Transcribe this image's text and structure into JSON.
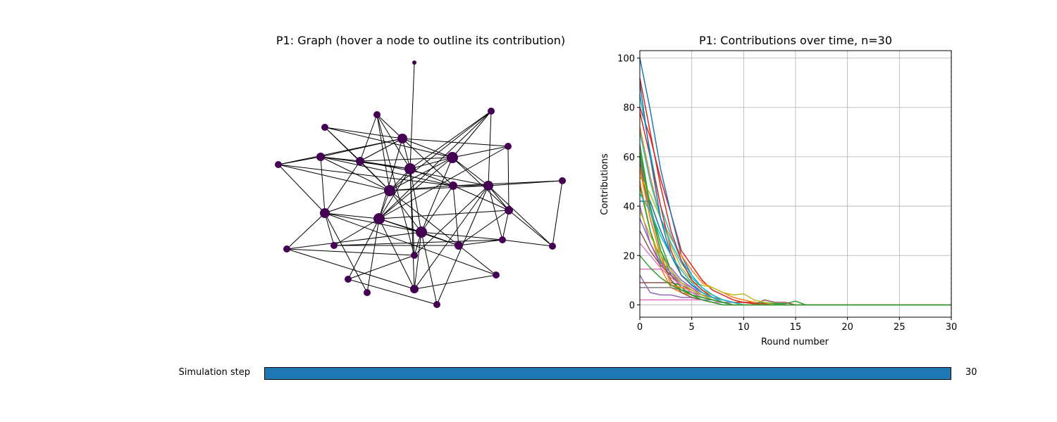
{
  "graph_panel": {
    "title": "P1: Graph (hover a node to outline its contribution)",
    "node_color": "#440154",
    "edge_color": "#000000"
  },
  "slider": {
    "label": "Simulation step",
    "value": "30",
    "fraction": 1.0,
    "fill_color": "#1f77b4"
  },
  "chart_data": {
    "type": "line",
    "title": "P1: Contributions over time, n=30",
    "xlabel": "Round number",
    "ylabel": "Contributions",
    "xlim": [
      0,
      30
    ],
    "ylim": [
      -5,
      103
    ],
    "xticks": [
      0,
      5,
      10,
      15,
      20,
      25,
      30
    ],
    "yticks": [
      0,
      20,
      40,
      60,
      80,
      100
    ],
    "grid": true,
    "vline": {
      "x": 30,
      "color": "#d62728",
      "style": "dashed"
    },
    "x": [
      0,
      1,
      2,
      3,
      4,
      5,
      6,
      7,
      8,
      9,
      10,
      11,
      12,
      13,
      14,
      15,
      16,
      30
    ],
    "series": [
      {
        "color": "#d62728",
        "values": [
          80,
          68,
          51,
          37,
          22,
          16,
          10,
          6,
          4,
          2,
          1,
          1,
          0.5,
          0,
          0,
          0,
          0,
          0
        ]
      },
      {
        "color": "#1f77b4",
        "values": [
          100,
          79,
          55,
          37,
          20,
          12,
          7,
          4,
          2,
          1,
          0,
          0,
          0,
          0,
          0,
          0,
          0,
          0
        ]
      },
      {
        "color": "#ff7f0e",
        "values": [
          72,
          52,
          35,
          27,
          20,
          14,
          9,
          7,
          5,
          3,
          2,
          1,
          0,
          0,
          0,
          0,
          0,
          0
        ]
      },
      {
        "color": "#2ca02c",
        "values": [
          65,
          40,
          25,
          14,
          9,
          6,
          4,
          3,
          2,
          1,
          1,
          0.5,
          1,
          0.5,
          0.5,
          1.5,
          0,
          0
        ]
      },
      {
        "color": "#9467bd",
        "values": [
          12,
          5,
          4,
          4,
          3,
          3,
          2,
          2,
          1,
          1,
          0,
          0,
          0,
          0,
          0,
          0,
          0,
          0
        ]
      },
      {
        "color": "#8c564b",
        "values": [
          9,
          9,
          9,
          9,
          8,
          6,
          4,
          3,
          2,
          1,
          0,
          0,
          2,
          1,
          1,
          0,
          0,
          0
        ]
      },
      {
        "color": "#e377c2",
        "values": [
          14.5,
          14.5,
          14.5,
          12,
          9,
          7,
          5,
          3,
          2,
          1,
          0,
          0,
          0,
          0,
          0,
          0,
          0,
          0
        ]
      },
      {
        "color": "#7f7f7f",
        "values": [
          60,
          38,
          22,
          14,
          9,
          6,
          4,
          3,
          2,
          1,
          0,
          0,
          0,
          0,
          0,
          0,
          0,
          0
        ]
      },
      {
        "color": "#bcbd22",
        "values": [
          55,
          42,
          30,
          20,
          12,
          9,
          8,
          7,
          5,
          4,
          4.5,
          2,
          1,
          0,
          0,
          0,
          0,
          0
        ]
      },
      {
        "color": "#17becf",
        "values": [
          85,
          62,
          40,
          28,
          18,
          12,
          7,
          4,
          2,
          1,
          0,
          0,
          0,
          0,
          0,
          0,
          0,
          0
        ]
      },
      {
        "color": "#1f77b4",
        "values": [
          42,
          42,
          30,
          20,
          12,
          8,
          5,
          3,
          2,
          1,
          0,
          0,
          0,
          0,
          0,
          0,
          0,
          0
        ]
      },
      {
        "color": "#d62728",
        "values": [
          78,
          60,
          40,
          22,
          12,
          8,
          5,
          3,
          2,
          1,
          1,
          0.5,
          0,
          0,
          0,
          0,
          0,
          0
        ]
      },
      {
        "color": "#ff7f0e",
        "values": [
          50,
          30,
          15,
          7,
          5,
          4,
          3,
          2,
          1,
          0,
          0,
          0,
          0,
          0,
          0,
          0,
          0,
          0
        ]
      },
      {
        "color": "#2ca02c",
        "values": [
          48,
          30,
          18,
          10,
          6,
          4,
          2,
          1,
          1,
          0,
          0,
          0,
          0,
          0,
          0,
          0,
          0,
          0
        ]
      },
      {
        "color": "#9467bd",
        "values": [
          40,
          25,
          16,
          15,
          10,
          7,
          4,
          2,
          1,
          0,
          0,
          0,
          0,
          0,
          0,
          0,
          0,
          0
        ]
      },
      {
        "color": "#8c564b",
        "values": [
          58,
          35,
          20,
          10,
          5,
          3,
          2,
          1,
          0,
          0,
          0,
          0,
          0,
          0,
          0,
          0,
          0,
          0
        ]
      },
      {
        "color": "#e377c2",
        "values": [
          2,
          2,
          2,
          2,
          2,
          2,
          2,
          1,
          1,
          0,
          0,
          0,
          0,
          0,
          0,
          0,
          0,
          0
        ]
      },
      {
        "color": "#7f7f7f",
        "values": [
          7,
          7,
          7,
          7,
          6,
          5,
          4,
          3,
          2,
          1,
          0,
          0,
          0,
          0,
          0,
          0,
          0,
          0
        ]
      },
      {
        "color": "#bcbd22",
        "values": [
          52,
          45,
          35,
          24,
          15,
          10,
          6,
          4,
          2,
          1,
          0,
          0,
          0,
          0,
          0,
          0,
          0,
          0
        ]
      },
      {
        "color": "#17becf",
        "values": [
          70,
          50,
          35,
          25,
          17,
          11,
          7,
          4,
          2,
          1,
          0,
          0,
          0,
          0,
          0,
          0,
          0,
          0
        ]
      },
      {
        "color": "#1f77b4",
        "values": [
          90,
          60,
          35,
          20,
          12,
          8,
          5,
          3,
          1,
          0,
          0,
          0,
          0,
          0,
          0,
          0,
          0,
          0
        ]
      },
      {
        "color": "#2ca02c",
        "values": [
          62,
          40,
          22,
          12,
          7,
          4,
          2,
          1,
          0,
          0,
          0,
          0,
          0,
          0,
          0,
          0,
          0,
          0
        ]
      },
      {
        "color": "#9467bd",
        "values": [
          35,
          25,
          17,
          13,
          9,
          6,
          4,
          2,
          1,
          0,
          0,
          0,
          0,
          0,
          0,
          0,
          0,
          0
        ]
      },
      {
        "color": "#ff7f0e",
        "values": [
          55,
          35,
          20,
          8,
          7,
          6,
          4,
          2,
          1,
          0,
          0,
          0,
          0,
          0,
          0,
          0,
          0,
          0
        ]
      },
      {
        "color": "#d62728",
        "values": [
          92,
          70,
          48,
          30,
          18,
          10,
          6,
          3,
          1,
          0,
          0,
          0,
          0,
          0,
          0,
          0,
          0,
          0
        ]
      },
      {
        "color": "#17becf",
        "values": [
          45,
          38,
          28,
          20,
          14,
          9,
          5,
          3,
          1,
          0,
          0,
          0,
          0,
          0,
          0,
          0,
          0,
          0
        ]
      },
      {
        "color": "#8c564b",
        "values": [
          30,
          22,
          16,
          12,
          8,
          5,
          3,
          2,
          1,
          0,
          0,
          0,
          0,
          0,
          0,
          0,
          0,
          0
        ]
      },
      {
        "color": "#bcbd22",
        "values": [
          38,
          28,
          20,
          14,
          9,
          6,
          4,
          2,
          1,
          0,
          0,
          0,
          0,
          0,
          0,
          0,
          0,
          0
        ]
      },
      {
        "color": "#e377c2",
        "values": [
          25,
          20,
          15,
          11,
          8,
          5,
          3,
          2,
          1,
          0,
          0,
          0,
          0,
          0,
          0,
          0,
          0,
          0
        ]
      },
      {
        "color": "#2ca02c",
        "values": [
          20,
          15,
          11,
          8,
          6,
          4,
          3,
          2,
          1,
          0,
          0,
          0,
          0,
          0,
          0,
          0,
          0,
          0
        ]
      }
    ]
  }
}
